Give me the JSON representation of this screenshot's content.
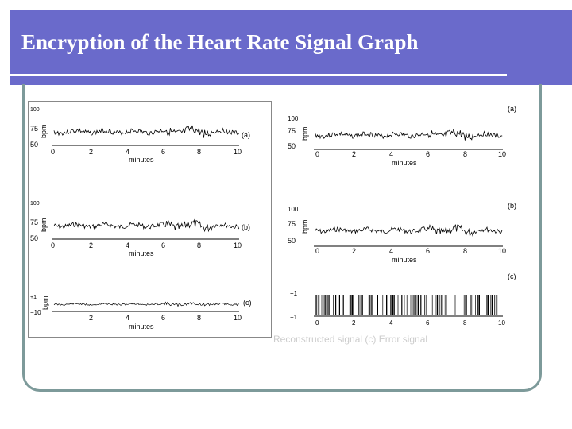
{
  "slide": {
    "title": "Encryption of the Heart Rate Signal Graph"
  },
  "caption": {
    "partial": "Reconstructed signal (c) Error signal"
  },
  "left_panel": {
    "ylabel": "bpm",
    "xlabel": "minutes",
    "x_ticks": [
      "0",
      "2",
      "4",
      "6",
      "8",
      "10"
    ],
    "x_ticks_c": [
      "2",
      "4",
      "6",
      "8",
      "10"
    ],
    "y_ticks": [
      "100",
      "75",
      "50"
    ],
    "err_ticks": [
      "+1",
      "−10"
    ],
    "labels": [
      "(a)",
      "(b)",
      "(c)"
    ]
  },
  "right_panel": {
    "ylabel": "bpm",
    "xlabel": "minutes",
    "x_ticks": [
      "0",
      "2",
      "4",
      "6",
      "8",
      "10"
    ],
    "y_ticks": [
      "100",
      "75",
      "50"
    ],
    "err_ticks": [
      "+1",
      "−1"
    ],
    "labels": [
      "(a)",
      "(b)",
      "(c)"
    ]
  },
  "colors": {
    "title_bg": "#6a6acb",
    "frame": "#7d9a9a"
  }
}
